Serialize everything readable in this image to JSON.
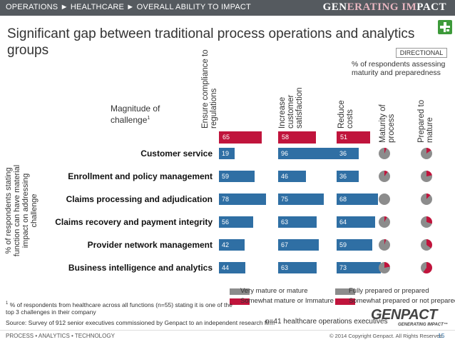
{
  "header": {
    "breadcrumb": "OPERATIONS ► HEALTHCARE ► OVERALL ABILITY TO IMPACT",
    "brand_prefix": "GEN",
    "brand_highlight": "ERATING IM",
    "brand_suffix": "PACT"
  },
  "title": "Significant gap between traditional process operations and analytics groups",
  "directional": "DIRECTIONAL",
  "pct_note": "% of respondents assessing maturity and preparedness",
  "magnitude_label": "Magnitude of challenge",
  "magnitude_sup": "1",
  "columns": {
    "compliance": "Ensure compliance to regulations",
    "satisfaction": "Increase customer satisfaction",
    "costs": "Reduce costs",
    "maturity": "Maturity of process",
    "prepared": "Prepared to mature"
  },
  "magnitude_values": {
    "compliance": "65",
    "satisfaction": "58",
    "costs": "51"
  },
  "vertical_label": "% of respondents stating function can have material impact on addressing challenge",
  "rows": [
    {
      "label": "Customer service",
      "compliance": 19,
      "satisfaction": 96,
      "costs": 36,
      "maturity_red": 0.07,
      "prepared_red": 0.15
    },
    {
      "label": "Enrollment and policy management",
      "compliance": 59,
      "satisfaction": 46,
      "costs": 36,
      "maturity_red": 0.1,
      "prepared_red": 0.22
    },
    {
      "label": "Claims processing and adjudication",
      "compliance": 78,
      "satisfaction": 75,
      "costs": 68,
      "maturity_red": 0.0,
      "prepared_red": 0.12
    },
    {
      "label": "Claims recovery and payment integrity",
      "compliance": 56,
      "satisfaction": 63,
      "costs": 64,
      "maturity_red": 0.08,
      "prepared_red": 0.3
    },
    {
      "label": "Provider network management",
      "compliance": 42,
      "satisfaction": 67,
      "costs": 59,
      "maturity_red": 0.05,
      "prepared_red": 0.35
    },
    {
      "label": "Business intelligence and analytics",
      "compliance": 44,
      "satisfaction": 63,
      "costs": 73,
      "maturity_red": 0.22,
      "prepared_red": 0.6
    }
  ],
  "legend": {
    "mature": "Very mature or mature",
    "immature": "Somewhat mature or Immature",
    "prepared": "Fully prepared or prepared",
    "not_prepared": "Somewhat prepared or not prepared"
  },
  "colors": {
    "blue": "#2f6fa4",
    "red": "#c0143c",
    "grey": "#8c8c8c"
  },
  "footnote_sup": "1",
  "footnote": "% of respondents from healthcare across all functions (n=55) stating it is one of the top 3 challenges in their company",
  "source": "Source: Survey of 912 senior executives commissioned by Genpact to an independent research firm",
  "sample": "n=41 healthcare operations executives",
  "logo": {
    "name": "GENPACT",
    "tagline": "GENERATING IMPACT™"
  },
  "footer": {
    "left": "PROCESS • ANALYTICS • TECHNOLOGY",
    "copyright": "© 2014 Copyright Genpact. All Rights Reserved.",
    "page": "15"
  },
  "icons": {
    "health": "health-cross-icon"
  }
}
